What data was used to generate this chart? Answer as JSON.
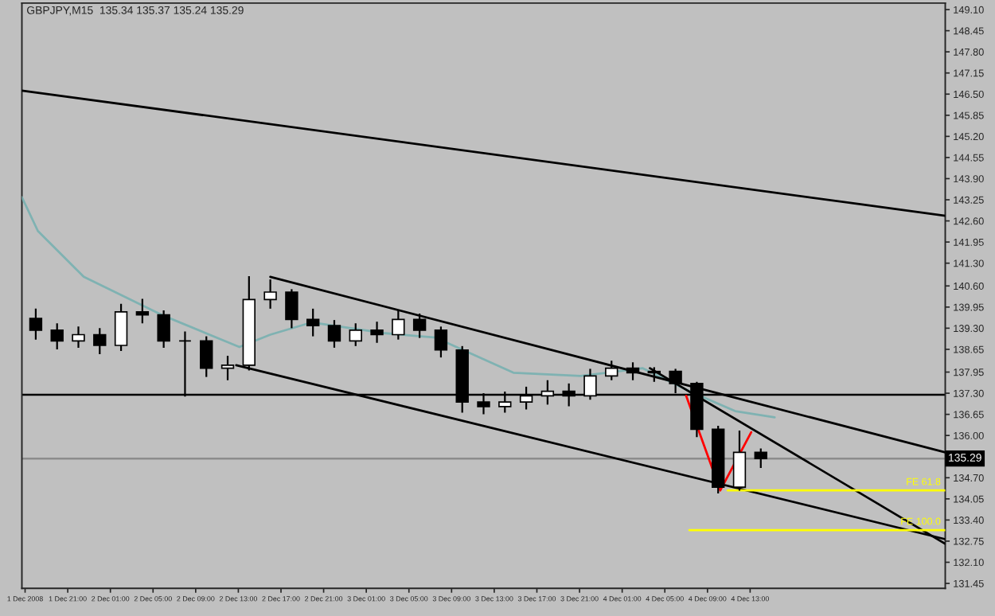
{
  "chart_data": {
    "type": "candlestick",
    "title": "GBPJPY,M15  135.34 135.37 135.24 135.29",
    "x": [
      "2008-12-01T18:00",
      "2008-12-01T20:00",
      "2008-12-01T22:00",
      "2008-12-02T00:00",
      "2008-12-02T02:00",
      "2008-12-02T04:00",
      "2008-12-02T06:00",
      "2008-12-02T08:00",
      "2008-12-02T10:00",
      "2008-12-02T12:00",
      "2008-12-02T14:00",
      "2008-12-02T16:00",
      "2008-12-02T18:00",
      "2008-12-02T20:00",
      "2008-12-02T22:00",
      "2008-12-03T00:00",
      "2008-12-03T02:00",
      "2008-12-03T04:00",
      "2008-12-03T06:00",
      "2008-12-03T08:00",
      "2008-12-03T10:00",
      "2008-12-03T12:00",
      "2008-12-03T14:00",
      "2008-12-03T16:00",
      "2008-12-03T18:00",
      "2008-12-03T20:00",
      "2008-12-03T22:00",
      "2008-12-04T00:00",
      "2008-12-04T02:00",
      "2008-12-04T04:00",
      "2008-12-04T06:00",
      "2008-12-04T08:00",
      "2008-12-04T10:00",
      "2008-12-04T12:00",
      "2008-12-04T14:00"
    ],
    "ohlc": [
      [
        139.6,
        139.9,
        138.95,
        139.24
      ],
      [
        139.24,
        139.45,
        138.65,
        138.91
      ],
      [
        138.91,
        139.35,
        138.7,
        139.1
      ],
      [
        139.1,
        139.3,
        138.5,
        138.77
      ],
      [
        138.77,
        140.05,
        138.6,
        139.8
      ],
      [
        139.8,
        140.2,
        139.45,
        139.71
      ],
      [
        139.71,
        139.85,
        138.7,
        138.91
      ],
      [
        138.91,
        139.2,
        137.2,
        138.91
      ],
      [
        138.91,
        139.05,
        137.8,
        138.07
      ],
      [
        138.07,
        138.45,
        137.7,
        138.16
      ],
      [
        138.16,
        140.9,
        138.0,
        140.18
      ],
      [
        140.18,
        140.8,
        139.9,
        140.41
      ],
      [
        140.41,
        140.5,
        139.3,
        139.57
      ],
      [
        139.57,
        139.9,
        139.05,
        139.38
      ],
      [
        139.38,
        139.55,
        138.7,
        138.91
      ],
      [
        138.91,
        139.45,
        138.75,
        139.24
      ],
      [
        139.24,
        139.5,
        138.85,
        139.1
      ],
      [
        139.1,
        139.85,
        138.95,
        139.57
      ],
      [
        139.57,
        139.75,
        139.0,
        139.24
      ],
      [
        139.24,
        139.35,
        138.4,
        138.63
      ],
      [
        138.63,
        138.75,
        136.7,
        137.03
      ],
      [
        137.03,
        137.3,
        136.65,
        136.89
      ],
      [
        136.89,
        137.35,
        136.7,
        137.03
      ],
      [
        137.03,
        137.5,
        136.8,
        137.22
      ],
      [
        137.22,
        137.7,
        136.95,
        137.36
      ],
      [
        137.36,
        137.6,
        136.9,
        137.22
      ],
      [
        137.22,
        138.05,
        137.1,
        137.83
      ],
      [
        137.83,
        138.3,
        137.7,
        138.07
      ],
      [
        138.07,
        138.25,
        137.7,
        137.93
      ],
      [
        137.93,
        138.1,
        137.65,
        137.97
      ],
      [
        137.97,
        138.05,
        137.3,
        137.6
      ],
      [
        137.6,
        137.65,
        135.95,
        136.19
      ],
      [
        136.19,
        136.3,
        134.22,
        134.41
      ],
      [
        134.41,
        136.15,
        134.3,
        135.48
      ],
      [
        135.48,
        135.6,
        135.0,
        135.29
      ]
    ],
    "series": [
      {
        "type": "line",
        "color": "#7fb2b2",
        "x": [
          "2008-12-01T16:42",
          "2008-12-01T18:12",
          "2008-12-01T22:30",
          "2008-12-02T05:48",
          "2008-12-02T13:06",
          "2008-12-02T16:00",
          "2008-12-02T19:54",
          "2008-12-03T02:36",
          "2008-12-03T07:30",
          "2008-12-03T14:48",
          "2008-12-03T21:06",
          "2008-12-04T02:54",
          "2008-12-04T07:18",
          "2008-12-04T11:36",
          "2008-12-04T15:18"
        ],
        "values": [
          143.33,
          142.29,
          140.88,
          139.71,
          138.72,
          139.1,
          139.48,
          139.15,
          139.01,
          137.93,
          137.83,
          138.07,
          137.36,
          136.75,
          136.56
        ]
      },
      {
        "type": "line",
        "color": "#000000",
        "x": [
          "2008-12-01T16:42",
          "2008-12-05T07:18"
        ],
        "values": [
          146.61,
          142.76
        ]
      },
      {
        "type": "line",
        "color": "#000000",
        "x": [
          "2008-12-02T16:00",
          "2008-12-05T07:18"
        ],
        "values": [
          140.88,
          135.48
        ]
      },
      {
        "type": "line",
        "color": "#000000",
        "x": [
          "2008-12-02T12:48",
          "2008-12-05T07:18"
        ],
        "values": [
          138.16,
          132.81
        ]
      },
      {
        "type": "line",
        "color": "#000000",
        "x": [
          "2008-12-04T03:36",
          "2008-12-05T07:18"
        ],
        "values": [
          138.07,
          132.67
        ]
      },
      {
        "type": "line",
        "color": "#ff0000",
        "x": [
          "2008-12-04T07:00",
          "2008-12-04T10:12",
          "2008-12-04T13:06"
        ],
        "values": [
          137.22,
          134.31,
          136.1
        ]
      },
      {
        "type": "line",
        "name": "FE 61.8",
        "color": "#ffff00",
        "x": [
          "2008-12-04T10:54",
          "2008-12-05T07:18"
        ],
        "values": [
          134.31,
          134.31
        ]
      },
      {
        "type": "line",
        "name": "FE 100.0",
        "color": "#ffff00",
        "x": [
          "2008-12-04T07:18",
          "2008-12-05T07:18"
        ],
        "values": [
          133.09,
          133.09
        ]
      }
    ],
    "ref_lines": [
      {
        "axis": "y",
        "value": 137.25,
        "color": "#000000"
      },
      {
        "axis": "y",
        "value": 135.29,
        "label": "135.29",
        "color": "#8c8c8c"
      }
    ],
    "xlim": [
      "2008-12-01T16:42",
      "2008-12-05T07:18"
    ],
    "xticks": [
      {
        "value": "2008-12-01T17:00",
        "label": "1 Dec 2008"
      },
      {
        "value": "2008-12-01T21:00",
        "label": "1 Dec 21:00"
      },
      {
        "value": "2008-12-02T01:00",
        "label": "2 Dec 01:00"
      },
      {
        "value": "2008-12-02T05:00",
        "label": "2 Dec 05:00"
      },
      {
        "value": "2008-12-02T09:00",
        "label": "2 Dec 09:00"
      },
      {
        "value": "2008-12-02T13:00",
        "label": "2 Dec 13:00"
      },
      {
        "value": "2008-12-02T17:00",
        "label": "2 Dec 17:00"
      },
      {
        "value": "2008-12-02T21:00",
        "label": "2 Dec 21:00"
      },
      {
        "value": "2008-12-03T01:00",
        "label": "3 Dec 01:00"
      },
      {
        "value": "2008-12-03T05:00",
        "label": "3 Dec 05:00"
      },
      {
        "value": "2008-12-03T09:00",
        "label": "3 Dec 09:00"
      },
      {
        "value": "2008-12-03T13:00",
        "label": "3 Dec 13:00"
      },
      {
        "value": "2008-12-03T17:00",
        "label": "3 Dec 17:00"
      },
      {
        "value": "2008-12-03T21:00",
        "label": "3 Dec 21:00"
      },
      {
        "value": "2008-12-04T01:00",
        "label": "4 Dec 01:00"
      },
      {
        "value": "2008-12-04T05:00",
        "label": "4 Dec 05:00"
      },
      {
        "value": "2008-12-04T09:00",
        "label": "4 Dec 09:00"
      },
      {
        "value": "2008-12-04T13:00",
        "label": "4 Dec 13:00"
      }
    ],
    "ylim": [
      131.3,
      149.3
    ],
    "yticks": [
      {
        "value": 149.1,
        "label": "149.10"
      },
      {
        "value": 148.45,
        "label": "148.45"
      },
      {
        "value": 147.8,
        "label": "147.80"
      },
      {
        "value": 147.15,
        "label": "147.15"
      },
      {
        "value": 146.5,
        "label": "146.50"
      },
      {
        "value": 145.85,
        "label": "145.85"
      },
      {
        "value": 145.2,
        "label": "145.20"
      },
      {
        "value": 144.55,
        "label": "144.55"
      },
      {
        "value": 143.9,
        "label": "143.90"
      },
      {
        "value": 143.25,
        "label": "143.25"
      },
      {
        "value": 142.6,
        "label": "142.60"
      },
      {
        "value": 141.95,
        "label": "141.95"
      },
      {
        "value": 141.3,
        "label": "141.30"
      },
      {
        "value": 140.6,
        "label": "140.60"
      },
      {
        "value": 139.95,
        "label": "139.95"
      },
      {
        "value": 139.3,
        "label": "139.30"
      },
      {
        "value": 138.65,
        "label": "138.65"
      },
      {
        "value": 137.95,
        "label": "137.95"
      },
      {
        "value": 137.3,
        "label": "137.30"
      },
      {
        "value": 136.65,
        "label": "136.65"
      },
      {
        "value": 136.0,
        "label": "136.00"
      },
      {
        "value": 134.7,
        "label": "134.70"
      },
      {
        "value": 134.05,
        "label": "134.05"
      },
      {
        "value": 133.4,
        "label": "133.40"
      },
      {
        "value": 132.75,
        "label": "132.75"
      },
      {
        "value": 132.1,
        "label": "132.10"
      },
      {
        "value": 131.45,
        "label": "131.45"
      }
    ],
    "grid": false,
    "legend": false
  }
}
